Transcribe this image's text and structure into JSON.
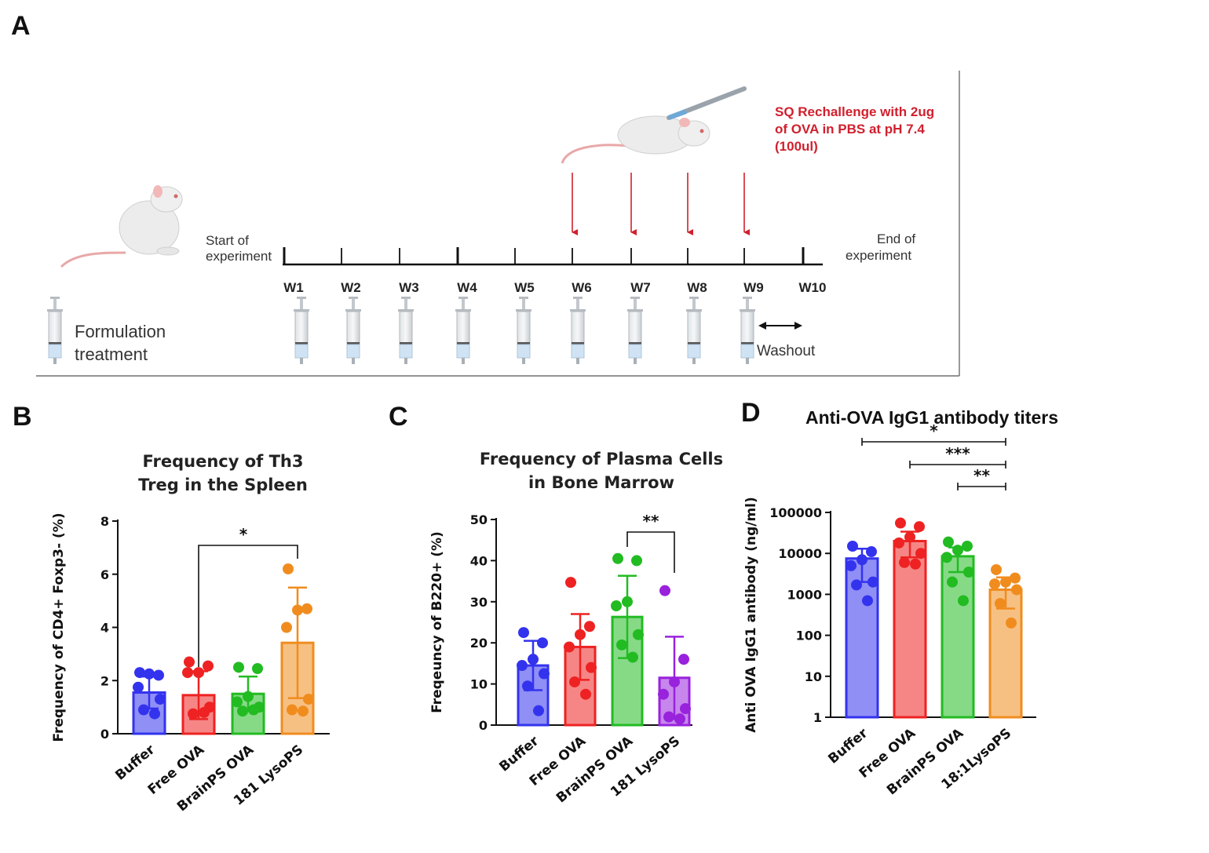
{
  "panel_a": {
    "label": "A",
    "start_lines": [
      "Start of",
      "experiment"
    ],
    "end_lines": [
      "End of",
      "experiment"
    ],
    "weeks": [
      "W1",
      "W2",
      "W3",
      "W4",
      "W5",
      "W6",
      "W7",
      "W8",
      "W9",
      "W10"
    ],
    "rechallenge_lines": [
      "SQ Rechallenge with 2ug",
      "of OVA in PBS at pH 7.4",
      "(100ul)"
    ],
    "rechallenge_weeks": [
      "W6",
      "W7",
      "W8",
      "W9"
    ],
    "formulation_lines": [
      "Formulation",
      "treatment"
    ],
    "washout": "Washout",
    "accent_red": "#d0202e"
  },
  "chart_data": [
    {
      "panel": "B",
      "type": "bar",
      "title_lines": [
        "Frequency of Th3",
        "Treg in the Spleen"
      ],
      "ylabel": "Frequency of CD4+ Foxp3- (%)",
      "xlabel": "",
      "ylim": [
        0,
        8
      ],
      "yticks": [
        "0",
        "2",
        "4",
        "6",
        "8"
      ],
      "categories": [
        "Buffer",
        "Free OVA",
        "BrainPS OVA",
        "181 LysoPS"
      ],
      "colors": [
        "#3333ee",
        "#ee2222",
        "#22bb22",
        "#f08c1e"
      ],
      "values": [
        1.55,
        1.45,
        1.5,
        3.42
      ],
      "sd": [
        0.6,
        0.9,
        0.65,
        2.08
      ],
      "points": [
        [
          2.3,
          2.2,
          2.25,
          1.75,
          1.3,
          0.9,
          0.75
        ],
        [
          2.7,
          2.55,
          2.3,
          2.3,
          1.0,
          0.75,
          0.8
        ],
        [
          2.5,
          2.45,
          1.4,
          1.2,
          1.0,
          0.85,
          0.9
        ],
        [
          6.2,
          4.7,
          4.65,
          4.0,
          1.3,
          0.9,
          0.85
        ]
      ],
      "significance": [
        {
          "from": 1,
          "to": 3,
          "label": "*"
        }
      ]
    },
    {
      "panel": "C",
      "type": "bar",
      "title_lines": [
        "Frequency of Plasma Cells",
        "in Bone Marrow"
      ],
      "ylabel": "Freqeuncy of B220+ (%)",
      "xlabel": "",
      "ylim": [
        0,
        50
      ],
      "yticks": [
        "0",
        "10",
        "20",
        "30",
        "40",
        "50"
      ],
      "categories": [
        "Buffer",
        "Free OVA",
        "BrainPS OVA",
        "181 LysoPS"
      ],
      "colors": [
        "#3333ee",
        "#ee2222",
        "#22bb22",
        "#9922dd"
      ],
      "values": [
        14.5,
        19.0,
        26.3,
        11.5
      ],
      "sd": [
        6.0,
        8.0,
        10.0,
        10.0
      ],
      "points": [
        [
          22.5,
          20.0,
          16.0,
          14.5,
          12.5,
          9.5,
          3.5
        ],
        [
          34.7,
          24.0,
          22.0,
          19.0,
          14.0,
          10.5,
          7.5
        ],
        [
          40.5,
          40.0,
          30.0,
          29.0,
          22.0,
          19.5,
          16.5
        ],
        [
          32.7,
          16.0,
          10.5,
          7.5,
          4.0,
          2.0,
          1.5
        ]
      ],
      "significance": [
        {
          "from": 2,
          "to": 3,
          "label": "**"
        }
      ]
    },
    {
      "panel": "D",
      "type": "bar",
      "title": "Anti-OVA IgG1 antibody titers",
      "ylabel": "Anti OVA IgG1 antibody (ng/ml)",
      "xlabel": "",
      "yscale": "log",
      "ylim": [
        1,
        100000
      ],
      "yticks": [
        "1",
        "10",
        "100",
        "1000",
        "10000",
        "100000"
      ],
      "categories": [
        "Buffer",
        "Free OVA",
        "BrainPS OVA",
        "18:1LysoPS"
      ],
      "colors": [
        "#3333ee",
        "#ee2222",
        "#22bb22",
        "#f08c1e"
      ],
      "values": [
        7500,
        20000,
        8500,
        1300
      ],
      "err_low": [
        2000,
        8000,
        3500,
        450
      ],
      "err_high": [
        13000,
        34000,
        14000,
        2600
      ],
      "points": [
        [
          15000,
          11000,
          7000,
          5000,
          2000,
          1700,
          700
        ],
        [
          55000,
          45000,
          25000,
          18000,
          10000,
          6000,
          5500
        ],
        [
          19000,
          15000,
          12000,
          8000,
          3500,
          2000,
          700
        ],
        [
          4000,
          2500,
          2000,
          1800,
          1300,
          600,
          200
        ]
      ],
      "significance": [
        {
          "from": 0,
          "to": 3,
          "label": "*"
        },
        {
          "from": 1,
          "to": 3,
          "label": "***"
        },
        {
          "from": 2,
          "to": 3,
          "label": "**"
        }
      ]
    }
  ]
}
